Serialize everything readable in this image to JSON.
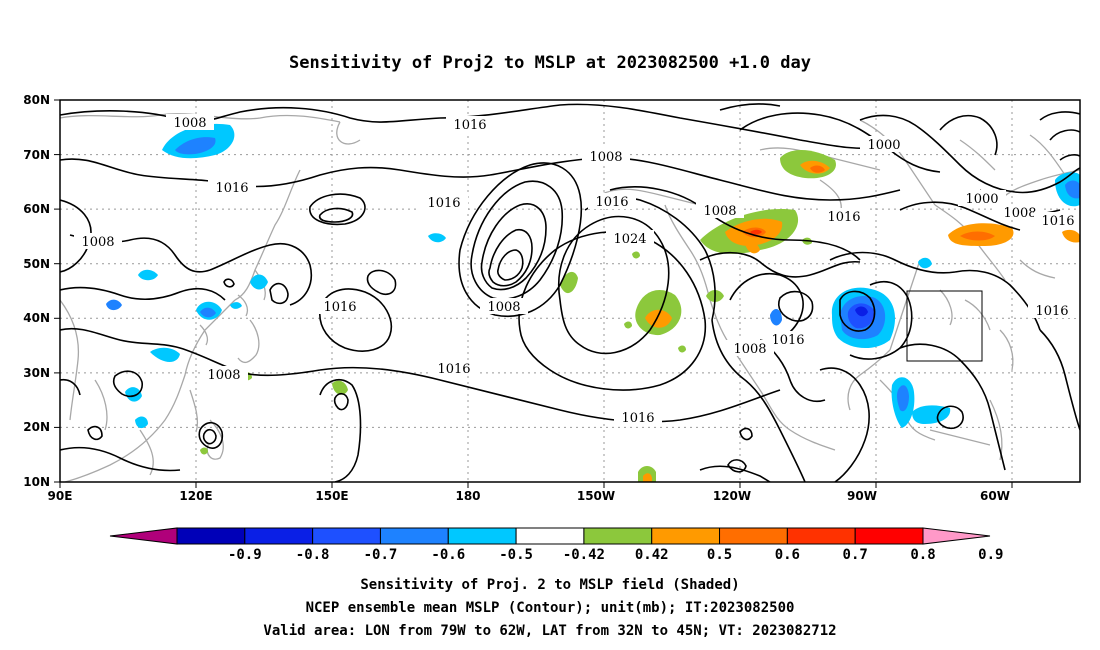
{
  "title": "Sensitivity of Proj2 to MSLP at 2023082500 +1.0 day",
  "map": {
    "lat_ticks": [
      "80N",
      "70N",
      "60N",
      "50N",
      "40N",
      "30N",
      "20N",
      "10N"
    ],
    "lon_ticks": [
      "90E",
      "120E",
      "150E",
      "180",
      "150W",
      "120W",
      "90W",
      "60W"
    ],
    "contour_labels": [
      {
        "text": "1016"
      },
      {
        "text": "1008"
      },
      {
        "text": "1016"
      },
      {
        "text": "1016"
      },
      {
        "text": "1008"
      },
      {
        "text": "1016"
      },
      {
        "text": "1024"
      },
      {
        "text": "1008"
      },
      {
        "text": "1016"
      },
      {
        "text": "1000"
      },
      {
        "text": "1000"
      },
      {
        "text": "1008"
      },
      {
        "text": "1016"
      },
      {
        "text": "1016"
      },
      {
        "text": "1016"
      },
      {
        "text": "1008"
      },
      {
        "text": "1016"
      },
      {
        "text": "1016"
      },
      {
        "text": "1008"
      },
      {
        "text": "1016"
      }
    ],
    "valid_area": {
      "lon_from": "79W",
      "lon_to": "62W",
      "lat_from": "32N",
      "lat_to": "45N"
    }
  },
  "colorbar": {
    "labels": [
      "-0.9",
      "-0.8",
      "-0.7",
      "-0.6",
      "-0.5",
      "-0.42",
      "0.42",
      "0.5",
      "0.6",
      "0.7",
      "0.8",
      "0.9"
    ],
    "colors": [
      "#b0007a",
      "#0000b8",
      "#0a1fe6",
      "#1e50ff",
      "#1e82ff",
      "#00c8ff",
      "#ffffff",
      "#8cc83c",
      "#ff9a00",
      "#ff6e00",
      "#ff3200",
      "#ff0000",
      "#ff99c8"
    ]
  },
  "captions": {
    "line1": "Sensitivity of Proj. 2 to MSLP field (Shaded)",
    "line2": "NCEP ensemble mean MSLP (Contour); unit(mb); IT:2023082500",
    "line3": "Valid area: LON from 79W to 62W, LAT from 32N to 45N; VT: 2023082712"
  }
}
